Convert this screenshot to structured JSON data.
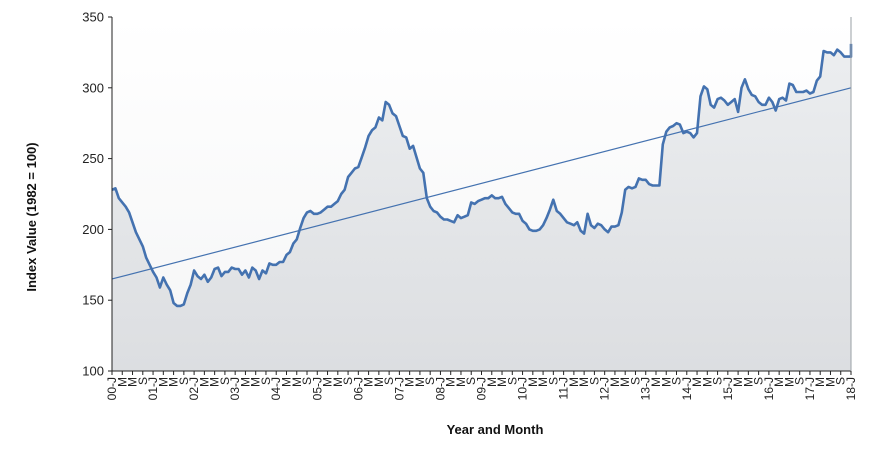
{
  "chart_data": {
    "type": "line",
    "xlabel": "Year and Month",
    "ylabel": "Index Value (1982 = 100)",
    "ylim": [
      100,
      350
    ],
    "yticks": [
      "100",
      "150",
      "200",
      "250",
      "300",
      "350"
    ],
    "grid": false,
    "x_tick_labels": [
      "00-J",
      "M",
      "M",
      "S",
      "01-J",
      "M",
      "M",
      "S",
      "02-J",
      "M",
      "M",
      "S",
      "03-J",
      "M",
      "M",
      "S",
      "04-J",
      "M",
      "M",
      "S",
      "05-J",
      "M",
      "M",
      "S",
      "06-J",
      "M",
      "M",
      "S",
      "07-J",
      "M",
      "M",
      "S",
      "08-J",
      "M",
      "M",
      "S",
      "09-J",
      "M",
      "M",
      "S",
      "10-J",
      "M",
      "M",
      "S",
      "11-J",
      "M",
      "M",
      "S",
      "12-J",
      "M",
      "M",
      "S",
      "13-J",
      "M",
      "M",
      "S",
      "14-J",
      "M",
      "M",
      "S",
      "15-J",
      "M",
      "M",
      "S",
      "16-J",
      "M",
      "M",
      "S",
      "17-J",
      "M",
      "M",
      "S",
      "18-J"
    ],
    "x_range_months": [
      "2000-01",
      "2018-01"
    ],
    "series": [
      {
        "type": "line",
        "color": "#4472b0",
        "fill": "#e8eaec",
        "points": [
          [
            "2000-01",
            228
          ],
          [
            "2000-02",
            229
          ],
          [
            "2000-03",
            222
          ],
          [
            "2000-05",
            216
          ],
          [
            "2000-06",
            212
          ],
          [
            "2000-07",
            205
          ],
          [
            "2000-08",
            198
          ],
          [
            "2000-10",
            188
          ],
          [
            "2000-11",
            180
          ],
          [
            "2001-01",
            170
          ],
          [
            "2001-02",
            166
          ],
          [
            "2001-03",
            159
          ],
          [
            "2001-04",
            166
          ],
          [
            "2001-05",
            161
          ],
          [
            "2001-06",
            157
          ],
          [
            "2001-07",
            148
          ],
          [
            "2001-08",
            146
          ],
          [
            "2001-09",
            146
          ],
          [
            "2001-10",
            147
          ],
          [
            "2001-11",
            155
          ],
          [
            "2001-12",
            161
          ],
          [
            "2002-01",
            171
          ],
          [
            "2002-02",
            167
          ],
          [
            "2002-03",
            165
          ],
          [
            "2002-04",
            168
          ],
          [
            "2002-05",
            163
          ],
          [
            "2002-06",
            166
          ],
          [
            "2002-07",
            172
          ],
          [
            "2002-08",
            173
          ],
          [
            "2002-09",
            167
          ],
          [
            "2002-10",
            170
          ],
          [
            "2002-11",
            170
          ],
          [
            "2002-12",
            173
          ],
          [
            "2003-01",
            172
          ],
          [
            "2003-02",
            172
          ],
          [
            "2003-03",
            168
          ],
          [
            "2003-04",
            171
          ],
          [
            "2003-05",
            166
          ],
          [
            "2003-06",
            173
          ],
          [
            "2003-07",
            171
          ],
          [
            "2003-08",
            165
          ],
          [
            "2003-09",
            171
          ],
          [
            "2003-10",
            169
          ],
          [
            "2003-11",
            176
          ],
          [
            "2003-12",
            175
          ],
          [
            "2004-01",
            175
          ],
          [
            "2004-02",
            177
          ],
          [
            "2004-03",
            177
          ],
          [
            "2004-04",
            182
          ],
          [
            "2004-05",
            184
          ],
          [
            "2004-06",
            190
          ],
          [
            "2004-07",
            193
          ],
          [
            "2004-08",
            201
          ],
          [
            "2004-09",
            208
          ],
          [
            "2004-10",
            212
          ],
          [
            "2004-11",
            213
          ],
          [
            "2004-12",
            211
          ],
          [
            "2005-01",
            211
          ],
          [
            "2005-02",
            212
          ],
          [
            "2005-03",
            214
          ],
          [
            "2005-04",
            216
          ],
          [
            "2005-05",
            216
          ],
          [
            "2005-06",
            218
          ],
          [
            "2005-07",
            220
          ],
          [
            "2005-08",
            225
          ],
          [
            "2005-09",
            228
          ],
          [
            "2005-10",
            237
          ],
          [
            "2005-11",
            240
          ],
          [
            "2005-12",
            243
          ],
          [
            "2006-01",
            244
          ],
          [
            "2006-02",
            251
          ],
          [
            "2006-03",
            258
          ],
          [
            "2006-04",
            266
          ],
          [
            "2006-05",
            270
          ],
          [
            "2006-06",
            272
          ],
          [
            "2006-07",
            279
          ],
          [
            "2006-08",
            277
          ],
          [
            "2006-09",
            290
          ],
          [
            "2006-10",
            288
          ],
          [
            "2006-11",
            282
          ],
          [
            "2006-12",
            280
          ],
          [
            "2007-01",
            273
          ],
          [
            "2007-02",
            266
          ],
          [
            "2007-03",
            265
          ],
          [
            "2007-04",
            257
          ],
          [
            "2007-05",
            259
          ],
          [
            "2007-06",
            251
          ],
          [
            "2007-07",
            243
          ],
          [
            "2007-08",
            240
          ],
          [
            "2007-09",
            222
          ],
          [
            "2007-10",
            216
          ],
          [
            "2007-11",
            213
          ],
          [
            "2007-12",
            212
          ],
          [
            "2008-01",
            209
          ],
          [
            "2008-02",
            207
          ],
          [
            "2008-03",
            207
          ],
          [
            "2008-04",
            206
          ],
          [
            "2008-05",
            205
          ],
          [
            "2008-06",
            210
          ],
          [
            "2008-07",
            208
          ],
          [
            "2008-08",
            209
          ],
          [
            "2008-09",
            210
          ],
          [
            "2008-10",
            219
          ],
          [
            "2008-11",
            218
          ],
          [
            "2008-12",
            220
          ],
          [
            "2009-01",
            221
          ],
          [
            "2009-02",
            222
          ],
          [
            "2009-03",
            222
          ],
          [
            "2009-04",
            224
          ],
          [
            "2009-05",
            222
          ],
          [
            "2009-06",
            222
          ],
          [
            "2009-07",
            223
          ],
          [
            "2009-08",
            218
          ],
          [
            "2009-09",
            215
          ],
          [
            "2009-10",
            212
          ],
          [
            "2009-11",
            211
          ],
          [
            "2009-12",
            211
          ],
          [
            "2010-01",
            206
          ],
          [
            "2010-02",
            204
          ],
          [
            "2010-03",
            200
          ],
          [
            "2010-04",
            199
          ],
          [
            "2010-05",
            199
          ],
          [
            "2010-06",
            200
          ],
          [
            "2010-07",
            203
          ],
          [
            "2010-08",
            208
          ],
          [
            "2010-09",
            214
          ],
          [
            "2010-10",
            221
          ],
          [
            "2010-11",
            213
          ],
          [
            "2010-12",
            211
          ],
          [
            "2011-01",
            208
          ],
          [
            "2011-02",
            205
          ],
          [
            "2011-03",
            204
          ],
          [
            "2011-04",
            203
          ],
          [
            "2011-05",
            205
          ],
          [
            "2011-06",
            199
          ],
          [
            "2011-07",
            197
          ],
          [
            "2011-08",
            211
          ],
          [
            "2011-09",
            203
          ],
          [
            "2011-10",
            201
          ],
          [
            "2011-11",
            204
          ],
          [
            "2011-12",
            203
          ],
          [
            "2012-01",
            200
          ],
          [
            "2012-02",
            198
          ],
          [
            "2012-03",
            202
          ],
          [
            "2012-04",
            202
          ],
          [
            "2012-05",
            203
          ],
          [
            "2012-06",
            212
          ],
          [
            "2012-07",
            228
          ],
          [
            "2012-08",
            230
          ],
          [
            "2012-09",
            229
          ],
          [
            "2012-10",
            230
          ],
          [
            "2012-11",
            236
          ],
          [
            "2012-12",
            235
          ],
          [
            "2013-01",
            235
          ],
          [
            "2013-02",
            232
          ],
          [
            "2013-03",
            231
          ],
          [
            "2013-04",
            231
          ],
          [
            "2013-05",
            231
          ],
          [
            "2013-06",
            260
          ],
          [
            "2013-07",
            269
          ],
          [
            "2013-08",
            272
          ],
          [
            "2013-09",
            273
          ],
          [
            "2013-10",
            275
          ],
          [
            "2013-11",
            274
          ],
          [
            "2013-12",
            268
          ],
          [
            "2014-01",
            269
          ],
          [
            "2014-02",
            268
          ],
          [
            "2014-03",
            265
          ],
          [
            "2014-04",
            268
          ],
          [
            "2014-05",
            294
          ],
          [
            "2014-06",
            301
          ],
          [
            "2014-07",
            299
          ],
          [
            "2014-08",
            288
          ],
          [
            "2014-09",
            286
          ],
          [
            "2014-10",
            292
          ],
          [
            "2014-11",
            293
          ],
          [
            "2014-12",
            291
          ],
          [
            "2015-01",
            288
          ],
          [
            "2015-02",
            290
          ],
          [
            "2015-03",
            292
          ],
          [
            "2015-04",
            283
          ],
          [
            "2015-05",
            300
          ],
          [
            "2015-06",
            306
          ],
          [
            "2015-07",
            299
          ],
          [
            "2015-08",
            295
          ],
          [
            "2015-09",
            294
          ],
          [
            "2015-10",
            290
          ],
          [
            "2015-11",
            288
          ],
          [
            "2015-12",
            288
          ],
          [
            "2016-01",
            293
          ],
          [
            "2016-02",
            290
          ],
          [
            "2016-03",
            284
          ],
          [
            "2016-04",
            292
          ],
          [
            "2016-05",
            293
          ],
          [
            "2016-06",
            291
          ],
          [
            "2016-07",
            303
          ],
          [
            "2016-08",
            302
          ],
          [
            "2016-09",
            297
          ],
          [
            "2016-10",
            297
          ],
          [
            "2016-11",
            297
          ],
          [
            "2016-12",
            298
          ],
          [
            "2017-01",
            296
          ],
          [
            "2017-02",
            297
          ],
          [
            "2017-03",
            305
          ],
          [
            "2017-04",
            308
          ],
          [
            "2017-05",
            326
          ],
          [
            "2017-06",
            325
          ],
          [
            "2017-07",
            325
          ],
          [
            "2017-08",
            323
          ],
          [
            "2017-09",
            327
          ],
          [
            "2017-10",
            325
          ],
          [
            "2017-11",
            322
          ],
          [
            "2017-12",
            322
          ],
          [
            "2018-01",
            322
          ],
          [
            "2018-02",
            331
          ]
        ]
      },
      {
        "type": "trendline",
        "color": "#4472b0",
        "points": [
          [
            "2000-01",
            165
          ],
          [
            "2018-02",
            300
          ]
        ]
      }
    ]
  }
}
